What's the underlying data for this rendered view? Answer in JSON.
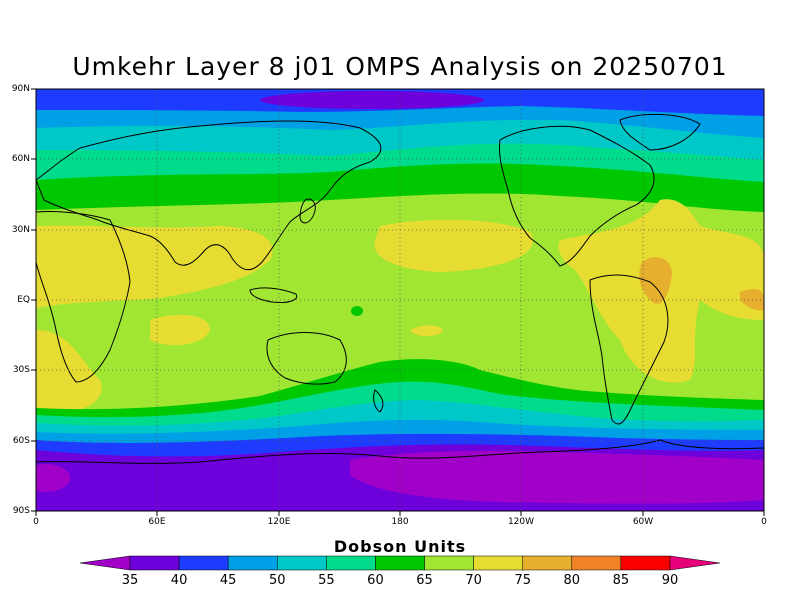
{
  "title": "Umkehr Layer 8 j01 OMPS Analysis on 20250701",
  "lat_labels": [
    "90N",
    "60N",
    "30N",
    "EQ",
    "30S",
    "60S",
    "90S"
  ],
  "lon_labels": [
    "0",
    "60E",
    "120E",
    "180",
    "120W",
    "60W",
    "0"
  ],
  "colorbar": {
    "title": "Dobson Units",
    "ticks": [
      "35",
      "40",
      "45",
      "50",
      "55",
      "60",
      "65",
      "70",
      "75",
      "80",
      "85",
      "90"
    ],
    "colors": [
      "#a000c8",
      "#6e00dc",
      "#1e3cff",
      "#00a0e6",
      "#00c8c8",
      "#00dc8c",
      "#00c800",
      "#a0e632",
      "#e6dc32",
      "#e6af2d",
      "#f08228",
      "#fa0000",
      "#e6007a"
    ]
  },
  "chart_data": {
    "type": "heatmap",
    "title": "Umkehr Layer 8 j01 OMPS Analysis on 20250701",
    "units": "Dobson Units",
    "lon_range": [
      0,
      360
    ],
    "lat_range": [
      -90,
      90
    ],
    "zonal_bands": [
      {
        "lat_from": 90,
        "lat_to": 80,
        "value_range": [
          35,
          45
        ]
      },
      {
        "lat_from": 80,
        "lat_to": 70,
        "value_range": [
          45,
          55
        ]
      },
      {
        "lat_from": 70,
        "lat_to": 55,
        "value_range": [
          55,
          60
        ]
      },
      {
        "lat_from": 55,
        "lat_to": 40,
        "value_range": [
          60,
          65
        ]
      },
      {
        "lat_from": 40,
        "lat_to": -30,
        "value_range": [
          65,
          75
        ]
      },
      {
        "lat_from": -30,
        "lat_to": -45,
        "value_range": [
          60,
          70
        ]
      },
      {
        "lat_from": -45,
        "lat_to": -60,
        "value_range": [
          45,
          60
        ]
      },
      {
        "lat_from": -60,
        "lat_to": -90,
        "value_range": [
          35,
          45
        ]
      }
    ],
    "local_maxima": [
      {
        "region": "Tropical South America / Atlantic",
        "value_range": [
          75,
          80
        ]
      }
    ]
  }
}
